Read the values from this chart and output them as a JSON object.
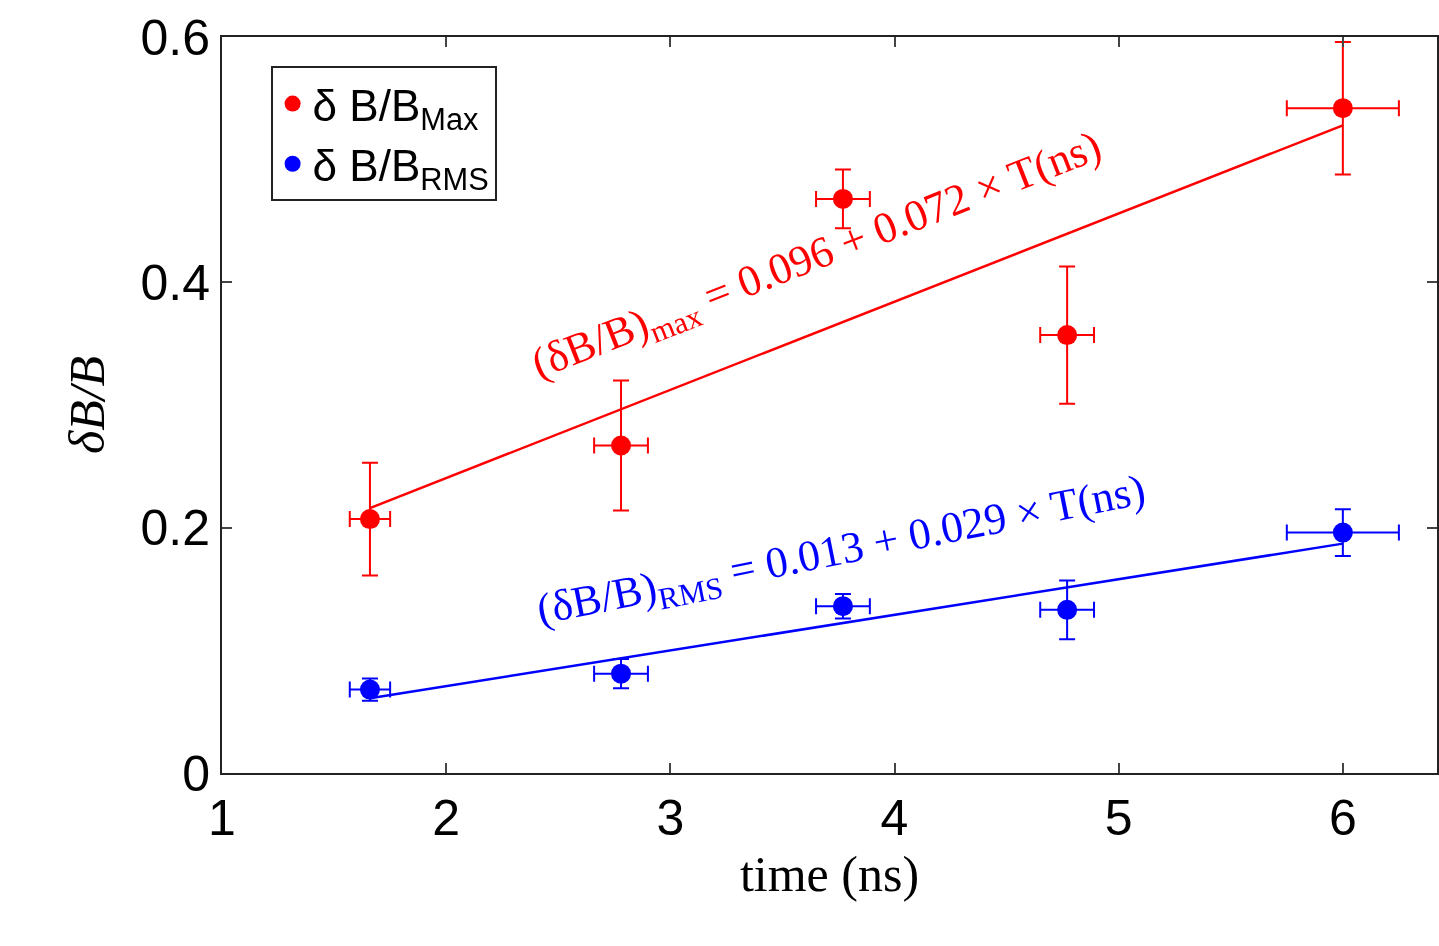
{
  "chart_data": {
    "type": "scatter",
    "xlabel": "time (ns)",
    "ylabel": "δB/B",
    "xlim": [
      1,
      6.42
    ],
    "ylim": [
      0,
      0.6
    ],
    "xticks": [
      1,
      2,
      3,
      4,
      5,
      6
    ],
    "yticks": [
      0,
      0.2,
      0.4,
      0.6
    ],
    "legend": "top left",
    "marker": "circle",
    "series": [
      {
        "name": "δ B/B$_{Max}$",
        "color": "#ff0000",
        "x": [
          1.66,
          2.78,
          3.77,
          4.77,
          6.0
        ],
        "values": [
          0.207,
          0.267,
          0.468,
          0.357,
          0.542
        ],
        "errors": [
          0.046,
          0.053,
          0.024,
          0.056,
          0.054
        ],
        "xerrors": [
          0.09,
          0.12,
          0.12,
          0.12,
          0.25
        ]
      },
      {
        "name": "δ B/B$_{RMS}$",
        "color": "#0000ff",
        "x": [
          1.66,
          2.78,
          3.77,
          4.77,
          6.0
        ],
        "values": [
          0.068,
          0.081,
          0.136,
          0.133,
          0.196
        ],
        "errors": [
          0.009,
          0.012,
          0.01,
          0.024,
          0.019
        ],
        "xerrors": [
          0.09,
          0.12,
          0.12,
          0.12,
          0.25
        ]
      },
      {
        "type": "line",
        "marker": "none",
        "color": "#ff0000",
        "x": [
          1.66,
          6.0
        ],
        "values": [
          0.216,
          0.528
        ]
      },
      {
        "type": "line",
        "marker": "none",
        "color": "#0000ff",
        "x": [
          1.66,
          6.0
        ],
        "values": [
          0.061,
          0.187
        ]
      }
    ],
    "annotations": [
      "(δB/B)$_{max}$ = 0.096 + 0.072 × T(ns)",
      "(δB/B)$_{RMS}$ = 0.013 + 0.029 × T(ns)"
    ]
  }
}
